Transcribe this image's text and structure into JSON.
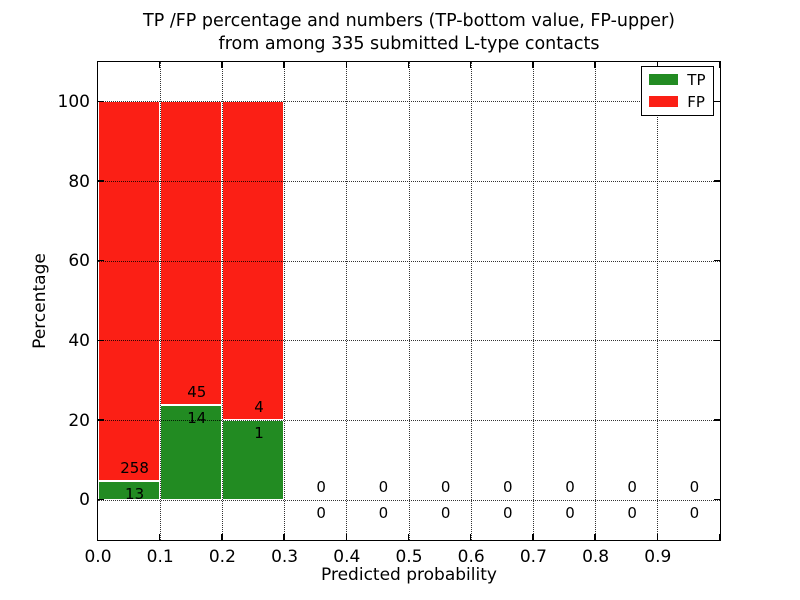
{
  "chart_data": {
    "type": "bar",
    "stacked": true,
    "percentage_stacked": true,
    "title": {
      "line1": "TP /FP percentage and numbers (TP-bottom value, FP-upper)",
      "line2": "from among 335 submitted L-type contacts"
    },
    "total_submitted": 335,
    "xlabel": "Predicted probability",
    "ylabel": "Percentage",
    "bin_width": 0.1,
    "bin_starts": [
      0.0,
      0.1,
      0.2,
      0.3,
      0.4,
      0.5,
      0.6,
      0.7,
      0.8,
      0.9
    ],
    "series": [
      {
        "name": "TP",
        "color": "#228b22",
        "counts": [
          13,
          14,
          1,
          0,
          0,
          0,
          0,
          0,
          0,
          0
        ],
        "pct": [
          4.8,
          23.7,
          20.0,
          0,
          0,
          0,
          0,
          0,
          0,
          0
        ]
      },
      {
        "name": "FP",
        "color": "#fb1f15",
        "counts": [
          258,
          45,
          4,
          0,
          0,
          0,
          0,
          0,
          0,
          0
        ],
        "pct": [
          95.2,
          76.3,
          80.0,
          0,
          0,
          0,
          0,
          0,
          0,
          0
        ]
      }
    ],
    "x_tick_labels": [
      "0.0",
      "0.1",
      "0.2",
      "0.3",
      "0.4",
      "0.5",
      "0.6",
      "0.7",
      "0.8",
      "0.9"
    ],
    "y_tick_values": [
      0,
      20,
      40,
      60,
      80,
      100
    ],
    "xlim": [
      0,
      1
    ],
    "ylim": [
      -10,
      110
    ],
    "grid": "dotted",
    "legend": {
      "position": "upper right",
      "entries": [
        "TP",
        "FP"
      ]
    }
  }
}
